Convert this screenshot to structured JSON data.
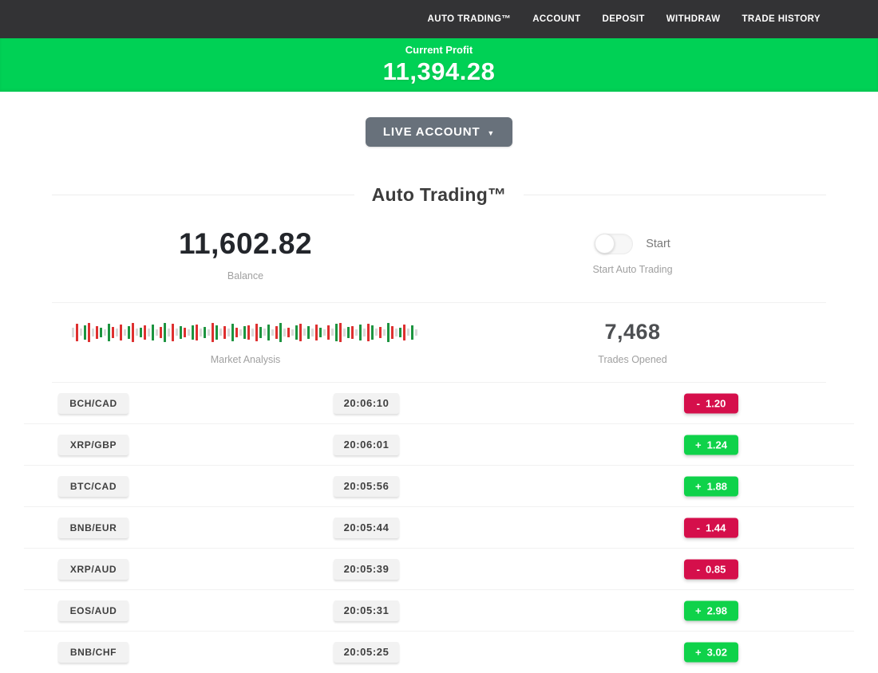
{
  "nav": {
    "items": [
      {
        "label": "AUTO TRADING™"
      },
      {
        "label": "ACCOUNT"
      },
      {
        "label": "DEPOSIT"
      },
      {
        "label": "WITHDRAW"
      },
      {
        "label": "TRADE HISTORY"
      }
    ]
  },
  "profit_banner": {
    "label": "Current Profit",
    "value": "11,394.28"
  },
  "account_selector": {
    "label": "LIVE ACCOUNT",
    "caret": "▼"
  },
  "section": {
    "title": "Auto Trading™"
  },
  "stats": {
    "balance": {
      "value": "11,602.82",
      "label": "Balance"
    },
    "auto_trading": {
      "toggle_label": "Start",
      "label": "Start Auto Trading",
      "toggle_state": "off"
    },
    "market": {
      "label": "Market Analysis",
      "bars": "x12 r22 x9 g18 r24 x10 r16 g12 x8 g22 r14 x10 r20 x8 g16 r24 x9 g12 r18 x10 g20 x8 r14 g24 x10 r22 x9 g16 r12 x8 g18 r20 x10 g14 x8 r24 g18 x9 r16 x10 g22 r12 x8 g16 r18 x10 r22 g14 x9 g20 x8 r16 g24 x10 r12 x8 g18 r22 x9 g16 x10 r20 g12 x8 r18 x9 g22 r24 x10 g14 r16 x8 g20 x10 r22 g18 x9 r14 x8 g24 r16 x10 g12 r20 x9 g18 x8"
    },
    "trades_opened": {
      "value": "7,468",
      "label": "Trades Opened"
    }
  },
  "trades_table": {
    "rows": [
      {
        "pair": "BCH/CAD",
        "time": "20:06:10",
        "sign": "-",
        "amount": "1.20",
        "direction": "loss"
      },
      {
        "pair": "XRP/GBP",
        "time": "20:06:01",
        "sign": "+",
        "amount": "1.24",
        "direction": "gain"
      },
      {
        "pair": "BTC/CAD",
        "time": "20:05:56",
        "sign": "+",
        "amount": "1.88",
        "direction": "gain"
      },
      {
        "pair": "BNB/EUR",
        "time": "20:05:44",
        "sign": "-",
        "amount": "1.44",
        "direction": "loss"
      },
      {
        "pair": "XRP/AUD",
        "time": "20:05:39",
        "sign": "-",
        "amount": "0.85",
        "direction": "loss"
      },
      {
        "pair": "EOS/AUD",
        "time": "20:05:31",
        "sign": "+",
        "amount": "2.98",
        "direction": "gain"
      },
      {
        "pair": "BNB/CHF",
        "time": "20:05:25",
        "sign": "+",
        "amount": "3.02",
        "direction": "gain"
      }
    ]
  },
  "colors": {
    "banner_green": "#00d155",
    "gain_green": "#0fd24a",
    "loss_red": "#d50f4b",
    "nav_bg": "#333335",
    "candle_red": "#de3030",
    "candle_green": "#1d9440",
    "candle_gray": "#d9d9d9"
  }
}
